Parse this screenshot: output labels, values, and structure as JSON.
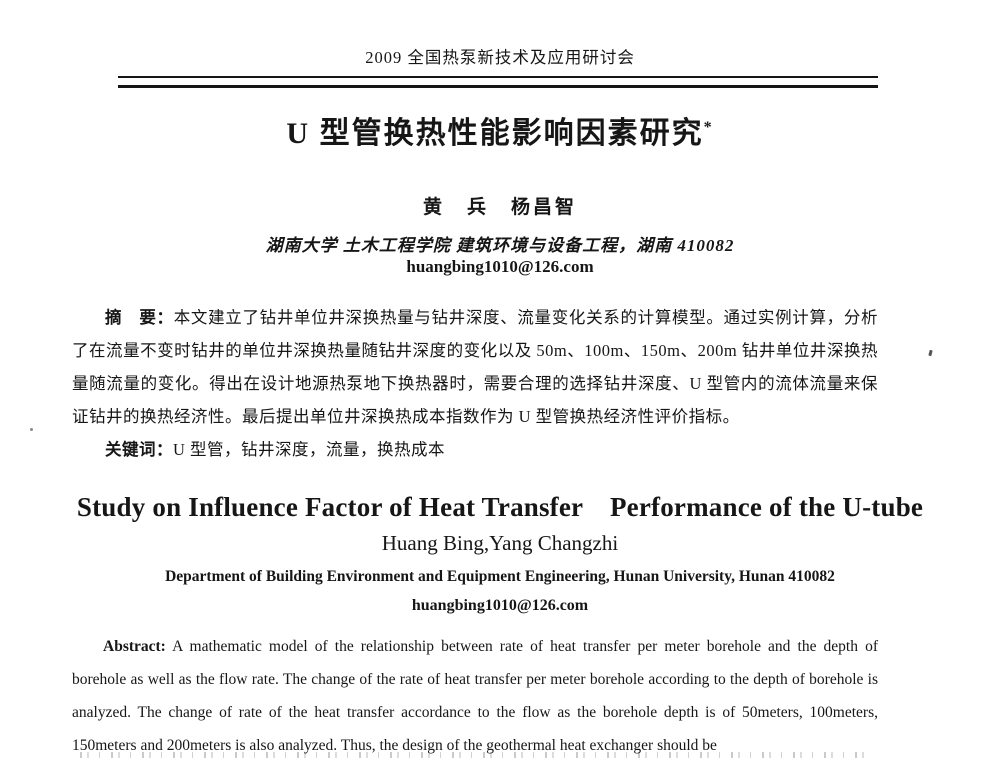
{
  "document": {
    "conference_header": "2009 全国热泵新技术及应用研讨会",
    "title_cn": "U 型管换热性能影响因素研究",
    "title_footnote_marker": "*",
    "authors_cn": "黄　兵　杨昌智",
    "affiliation_cn": "湖南大学 土木工程学院 建筑环境与设备工程，湖南 410082",
    "email_cn": "huangbing1010@126.com",
    "abstract_cn": {
      "label": "摘　要：",
      "text": "本文建立了钻井单位井深换热量与钻井深度、流量变化关系的计算模型。通过实例计算，分析了在流量不变时钻井的单位井深换热量随钻井深度的变化以及 50m、100m、150m、200m 钻井单位井深换热量随流量的变化。得出在设计地源热泵地下换热器时，需要合理的选择钻井深度、U 型管内的流体流量来保证钻井的换热经济性。最后提出单位井深换热成本指数作为 U 型管换热经济性评价指标。"
    },
    "keywords_cn": {
      "label": "关键词：",
      "text": "U 型管，钻井深度，流量，换热成本"
    },
    "title_en": "Study on Influence Factor of Heat Transfer　Performance of the U-tube",
    "authors_en": "Huang Bing,Yang Changzhi",
    "affiliation_en": "Department of Building Environment and Equipment Engineering, Hunan University, Hunan 410082",
    "email_en": "huangbing1010@126.com",
    "abstract_en": {
      "label": "Abstract:",
      "text": "A mathematic model of the relationship between rate of heat transfer per meter borehole and the depth of borehole as well as the flow rate. The change of the rate of heat transfer per meter borehole according to the depth of borehole is analyzed. The change of rate of the heat transfer accordance to the flow as the borehole depth is of 50meters, 100meters, 150meters and 200meters is also analyzed. Thus, the design of the geothermal heat exchanger should be"
    }
  },
  "colors": {
    "ink": "#161616",
    "paper": "#ffffff"
  }
}
